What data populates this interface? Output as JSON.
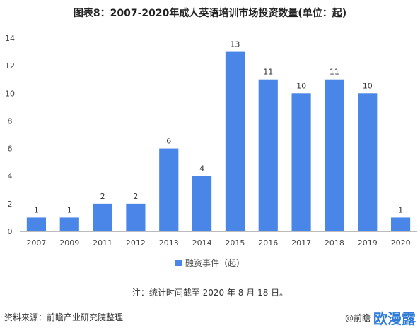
{
  "title": "图表8：2007-2020年成人英语培训市场投资数量(单位：起)",
  "chart_data": {
    "type": "bar",
    "categories": [
      "2007",
      "2009",
      "2011",
      "2012",
      "2013",
      "2014",
      "2015",
      "2016",
      "2017",
      "2018",
      "2019",
      "2020"
    ],
    "series": [
      {
        "name": "融资事件（起）",
        "values": [
          1,
          1,
          2,
          2,
          6,
          4,
          13,
          11,
          10,
          11,
          10,
          1
        ]
      }
    ],
    "ylim": [
      0,
      14
    ],
    "yticks": [
      0,
      2,
      4,
      6,
      8,
      10,
      12,
      14
    ],
    "grid": false,
    "legend_position": "bottom",
    "bar_color": "#4a86e8"
  },
  "note": "注：统计时间截至 2020 年 8 月 18 日。",
  "source": "资料来源：前瞻产业研究院整理",
  "footer_right": {
    "text": "@前瞻",
    "logo": "欧漫露"
  }
}
